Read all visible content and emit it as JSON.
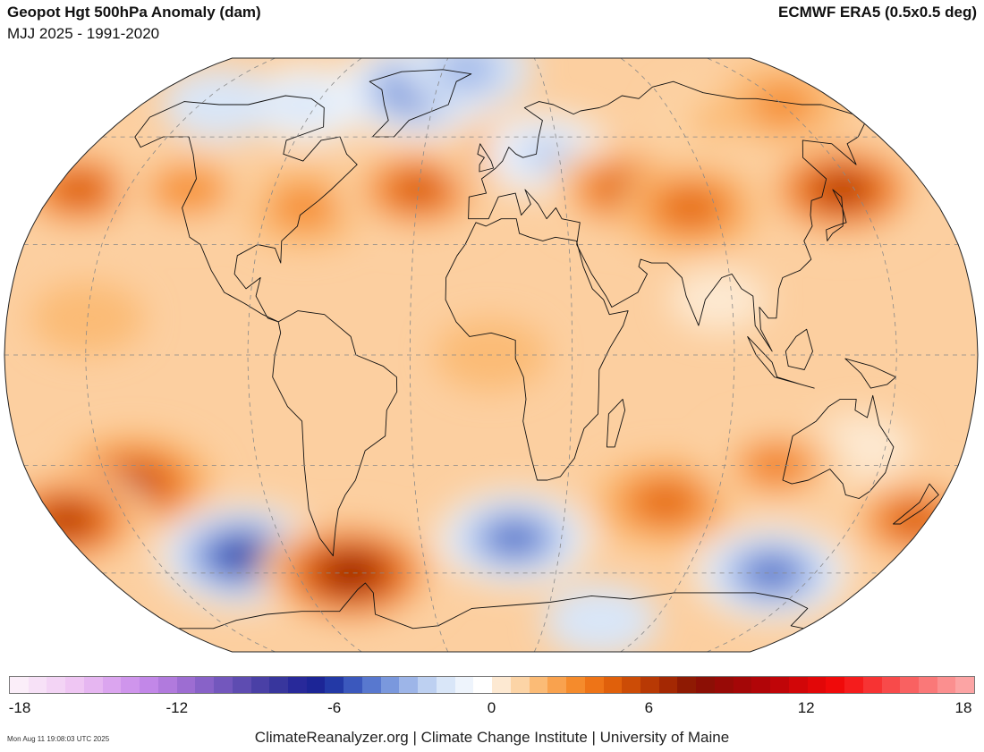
{
  "header": {
    "title": "Geopot Hgt 500hPa Anomaly (dam)",
    "subtitle": "MJJ 2025 - 1991-2020",
    "source": "ECMWF ERA5 (0.5x0.5 deg)"
  },
  "map": {
    "projection": "robinson",
    "fields": [
      {
        "lon": -75,
        "lat": 40,
        "value": 3
      },
      {
        "lon": -40,
        "lat": 75,
        "value": -5.5
      },
      {
        "lon": -15,
        "lat": 83,
        "value": -3
      },
      {
        "lon": -95,
        "lat": 70,
        "value": -2
      },
      {
        "lon": -140,
        "lat": 70,
        "value": -1.5
      },
      {
        "lon": -170,
        "lat": 45,
        "value": 5
      },
      {
        "lon": -125,
        "lat": 45,
        "value": 3.5
      },
      {
        "lon": -30,
        "lat": 45,
        "value": 5.5
      },
      {
        "lon": 10,
        "lat": 55,
        "value": 4
      },
      {
        "lon": 25,
        "lat": 55,
        "value": -2.5
      },
      {
        "lon": 55,
        "lat": 45,
        "value": 5
      },
      {
        "lon": 80,
        "lat": 40,
        "value": 4.5
      },
      {
        "lon": 145,
        "lat": 45,
        "value": 7
      },
      {
        "lon": 110,
        "lat": 65,
        "value": 2
      },
      {
        "lon": 150,
        "lat": 70,
        "value": 3
      },
      {
        "lon": 85,
        "lat": 15,
        "value": 0
      },
      {
        "lon": -150,
        "lat": 10,
        "value": 1.5
      },
      {
        "lon": 0,
        "lat": 0,
        "value": 1.5
      },
      {
        "lon": 140,
        "lat": -25,
        "value": 0.5
      },
      {
        "lon": -140,
        "lat": -35,
        "value": 6
      },
      {
        "lon": -175,
        "lat": -45,
        "value": 6.5
      },
      {
        "lon": -110,
        "lat": -55,
        "value": -6.5
      },
      {
        "lon": -65,
        "lat": -60,
        "value": 8
      },
      {
        "lon": 10,
        "lat": -50,
        "value": -5
      },
      {
        "lon": 70,
        "lat": -40,
        "value": 4.5
      },
      {
        "lon": 130,
        "lat": -60,
        "value": -5
      },
      {
        "lon": 175,
        "lat": -45,
        "value": 5
      },
      {
        "lon": 60,
        "lat": -75,
        "value": -1.5
      },
      {
        "lon": 110,
        "lat": -30,
        "value": 4
      }
    ]
  },
  "colorbar": {
    "min": -18,
    "max": 18,
    "ticks": [
      "-18",
      "-12",
      "-6",
      "0",
      "6",
      "12",
      "18"
    ],
    "colors": [
      "#fbeef9",
      "#f7e1f7",
      "#f3d4f5",
      "#efc6f3",
      "#e6b6f1",
      "#dba5ef",
      "#cf95ec",
      "#c287e8",
      "#b17add",
      "#9d6dd2",
      "#8862c8",
      "#7357bd",
      "#5e4cb1",
      "#4a40a6",
      "#38369d",
      "#28299a",
      "#1c2596",
      "#2339a6",
      "#3b58bd",
      "#5878cf",
      "#7a98dd",
      "#9db5e8",
      "#bdd0f1",
      "#d9e6f8",
      "#eef4fc",
      "#ffffff",
      "#fde9d2",
      "#fcd4a6",
      "#fbbb76",
      "#f9a24e",
      "#f58b2c",
      "#ee7417",
      "#e0600b",
      "#cc4c06",
      "#b83904",
      "#a42803",
      "#8f1a03",
      "#8c0f05",
      "#980a06",
      "#a40707",
      "#b10508",
      "#c00508",
      "#d20608",
      "#e20708",
      "#f00a0a",
      "#f51c1c",
      "#f73333",
      "#f84a4a",
      "#f96161",
      "#fa7878",
      "#fb8f8f",
      "#fca4a4"
    ]
  },
  "footer": {
    "timestamp": "Mon Aug 11 19:08:03 UTC 2025",
    "credits": "ClimateReanalyzer.org | Climate Change Institute | University of Maine"
  }
}
